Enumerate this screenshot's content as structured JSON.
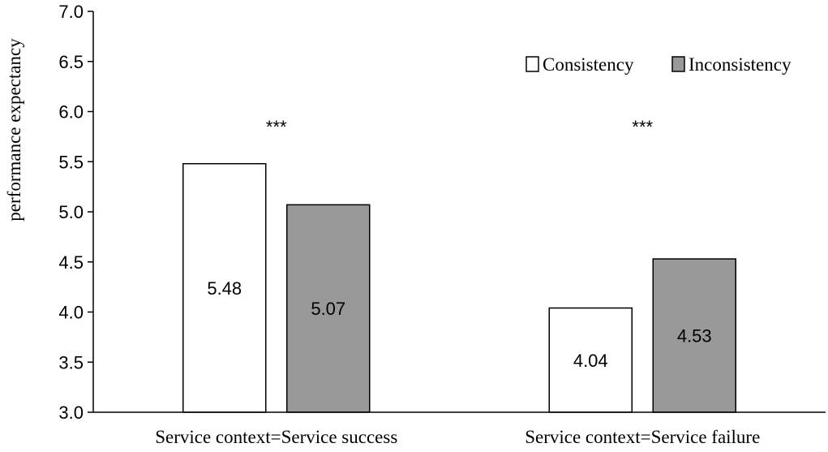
{
  "chart_data": {
    "type": "bar",
    "categories": [
      "Service context=Service success",
      "Service context=Service failure"
    ],
    "series": [
      {
        "name": "Consistency",
        "values": [
          5.48,
          4.04
        ],
        "color": "#ffffff"
      },
      {
        "name": "Inconsistency",
        "values": [
          5.07,
          4.53
        ],
        "color": "#999999"
      }
    ],
    "data_labels": [
      [
        "5.48",
        "5.07"
      ],
      [
        "4.04",
        "4.53"
      ]
    ],
    "significance": [
      "***",
      "***"
    ],
    "ylabel": "performance expectancy",
    "ylim": [
      3.0,
      7.0
    ],
    "yticks": [
      "3.0",
      "3.5",
      "4.0",
      "4.5",
      "5.0",
      "5.5",
      "6.0",
      "6.5",
      "7.0"
    ],
    "legend_position": "top-right",
    "grid": false
  }
}
